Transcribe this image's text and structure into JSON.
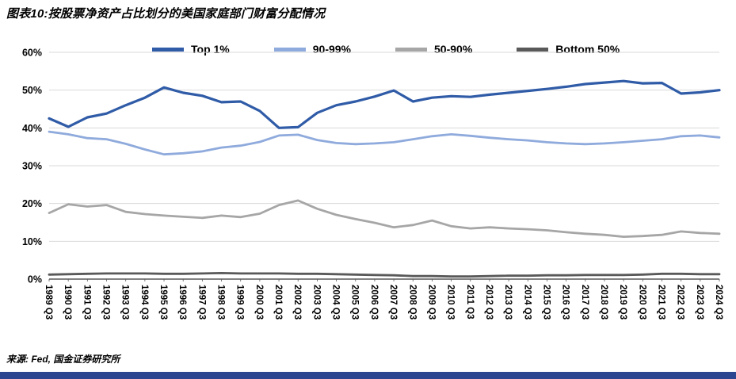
{
  "page": {
    "title": "图表10:按股票净资产占比划分的美国家庭部门财富分配情况",
    "source": "来源: Fed, 国金证券研究所",
    "footer_bar_color": "#2B4590",
    "background": "#FFFFFF"
  },
  "chart_data": {
    "type": "line",
    "title": "按股票净资产占比划分的美国家庭部门财富分配情况",
    "xlabel": "",
    "ylabel": "",
    "ylim": [
      0,
      60
    ],
    "ytick_step": 10,
    "ytick_suffix": "%",
    "grid": "horizontal",
    "legend_position": "top",
    "x": [
      "1989 Q3",
      "1990 Q3",
      "1991 Q3",
      "1992 Q3",
      "1993 Q3",
      "1994 Q3",
      "1995 Q3",
      "1996 Q3",
      "1997 Q3",
      "1998 Q3",
      "1999 Q3",
      "2000 Q3",
      "2001 Q3",
      "2002 Q3",
      "2003 Q3",
      "2004 Q3",
      "2005 Q3",
      "2006 Q3",
      "2007 Q3",
      "2008 Q3",
      "2009 Q3",
      "2010 Q3",
      "2011 Q3",
      "2012 Q3",
      "2013 Q3",
      "2014 Q3",
      "2015 Q3",
      "2016 Q3",
      "2017 Q3",
      "2018 Q3",
      "2019 Q3",
      "2020 Q3",
      "2021 Q3",
      "2022 Q3",
      "2023 Q3",
      "2024 Q3"
    ],
    "series": [
      {
        "name": "Top 1%",
        "color": "#2F5BA7",
        "width": 3.2,
        "values": [
          42.5,
          40.3,
          42.8,
          43.8,
          46.0,
          48.0,
          50.7,
          49.3,
          48.5,
          46.8,
          47.0,
          44.5,
          40.0,
          40.2,
          44.0,
          46.0,
          47.0,
          48.3,
          49.9,
          47.0,
          48.0,
          48.4,
          48.2,
          48.8,
          49.3,
          49.8,
          50.3,
          50.9,
          51.6,
          52.0,
          52.4,
          51.8,
          51.9,
          49.1,
          49.4,
          50.0
        ]
      },
      {
        "name": "90-99%",
        "color": "#8FAADC",
        "width": 2.8,
        "values": [
          39.0,
          38.3,
          37.3,
          37.0,
          35.8,
          34.3,
          33.0,
          33.3,
          33.8,
          34.8,
          35.3,
          36.3,
          38.0,
          38.2,
          36.8,
          36.0,
          35.7,
          35.9,
          36.2,
          37.0,
          37.8,
          38.3,
          37.9,
          37.4,
          37.0,
          36.7,
          36.2,
          35.9,
          35.7,
          35.9,
          36.2,
          36.6,
          37.0,
          37.8,
          38.0,
          37.5
        ]
      },
      {
        "name": "50-90%",
        "color": "#A6A6A6",
        "width": 2.8,
        "values": [
          17.5,
          19.8,
          19.2,
          19.6,
          17.8,
          17.2,
          16.8,
          16.5,
          16.2,
          16.8,
          16.4,
          17.3,
          19.6,
          20.8,
          18.6,
          17.0,
          15.9,
          14.9,
          13.7,
          14.3,
          15.5,
          14.0,
          13.4,
          13.7,
          13.4,
          13.2,
          12.9,
          12.4,
          12.0,
          11.7,
          11.2,
          11.4,
          11.7,
          12.6,
          12.2,
          12.0
        ]
      },
      {
        "name": "Bottom 50%",
        "color": "#595959",
        "width": 2.8,
        "values": [
          1.2,
          1.3,
          1.4,
          1.5,
          1.5,
          1.5,
          1.4,
          1.4,
          1.5,
          1.6,
          1.5,
          1.5,
          1.5,
          1.4,
          1.4,
          1.3,
          1.2,
          1.1,
          1.0,
          0.8,
          0.8,
          0.7,
          0.7,
          0.8,
          0.9,
          0.9,
          1.0,
          1.0,
          1.1,
          1.1,
          1.1,
          1.2,
          1.4,
          1.4,
          1.3,
          1.3
        ]
      }
    ]
  }
}
